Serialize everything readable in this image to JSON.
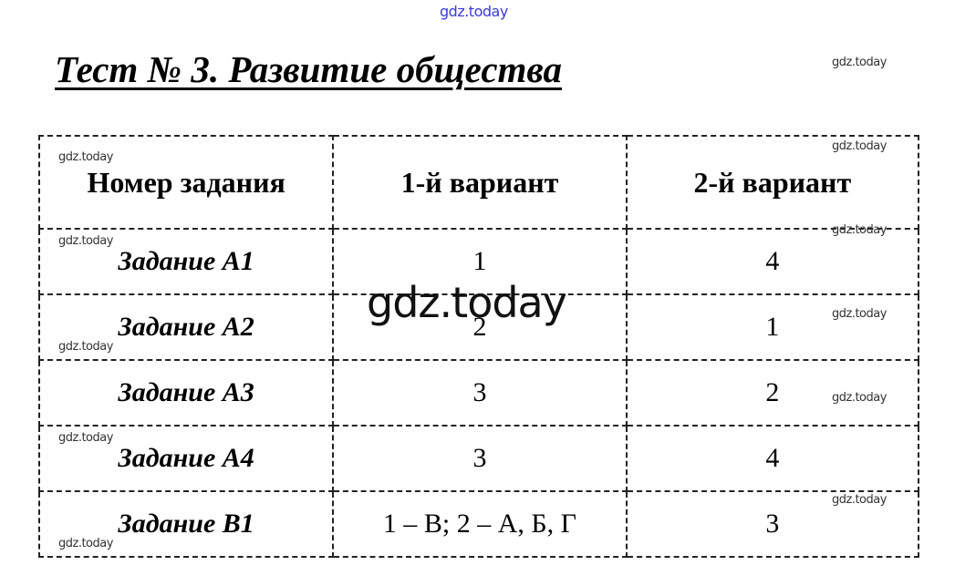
{
  "watermark": "gdz.today",
  "title": "Тест № 3. Развитие общества",
  "table": {
    "headers": [
      "Номер задания",
      "1-й вариант",
      "2-й вариант"
    ],
    "rows": [
      {
        "task": "Задание А1",
        "v1": "1",
        "v2": "4"
      },
      {
        "task": "Задание А2",
        "v1": "2",
        "v2": "1"
      },
      {
        "task": "Задание А3",
        "v1": "3",
        "v2": "2"
      },
      {
        "task": "Задание А4",
        "v1": "3",
        "v2": "4"
      },
      {
        "task": "Задание В1",
        "v1": "1 – В; 2 – А, Б, Г",
        "v2": "3"
      }
    ]
  }
}
